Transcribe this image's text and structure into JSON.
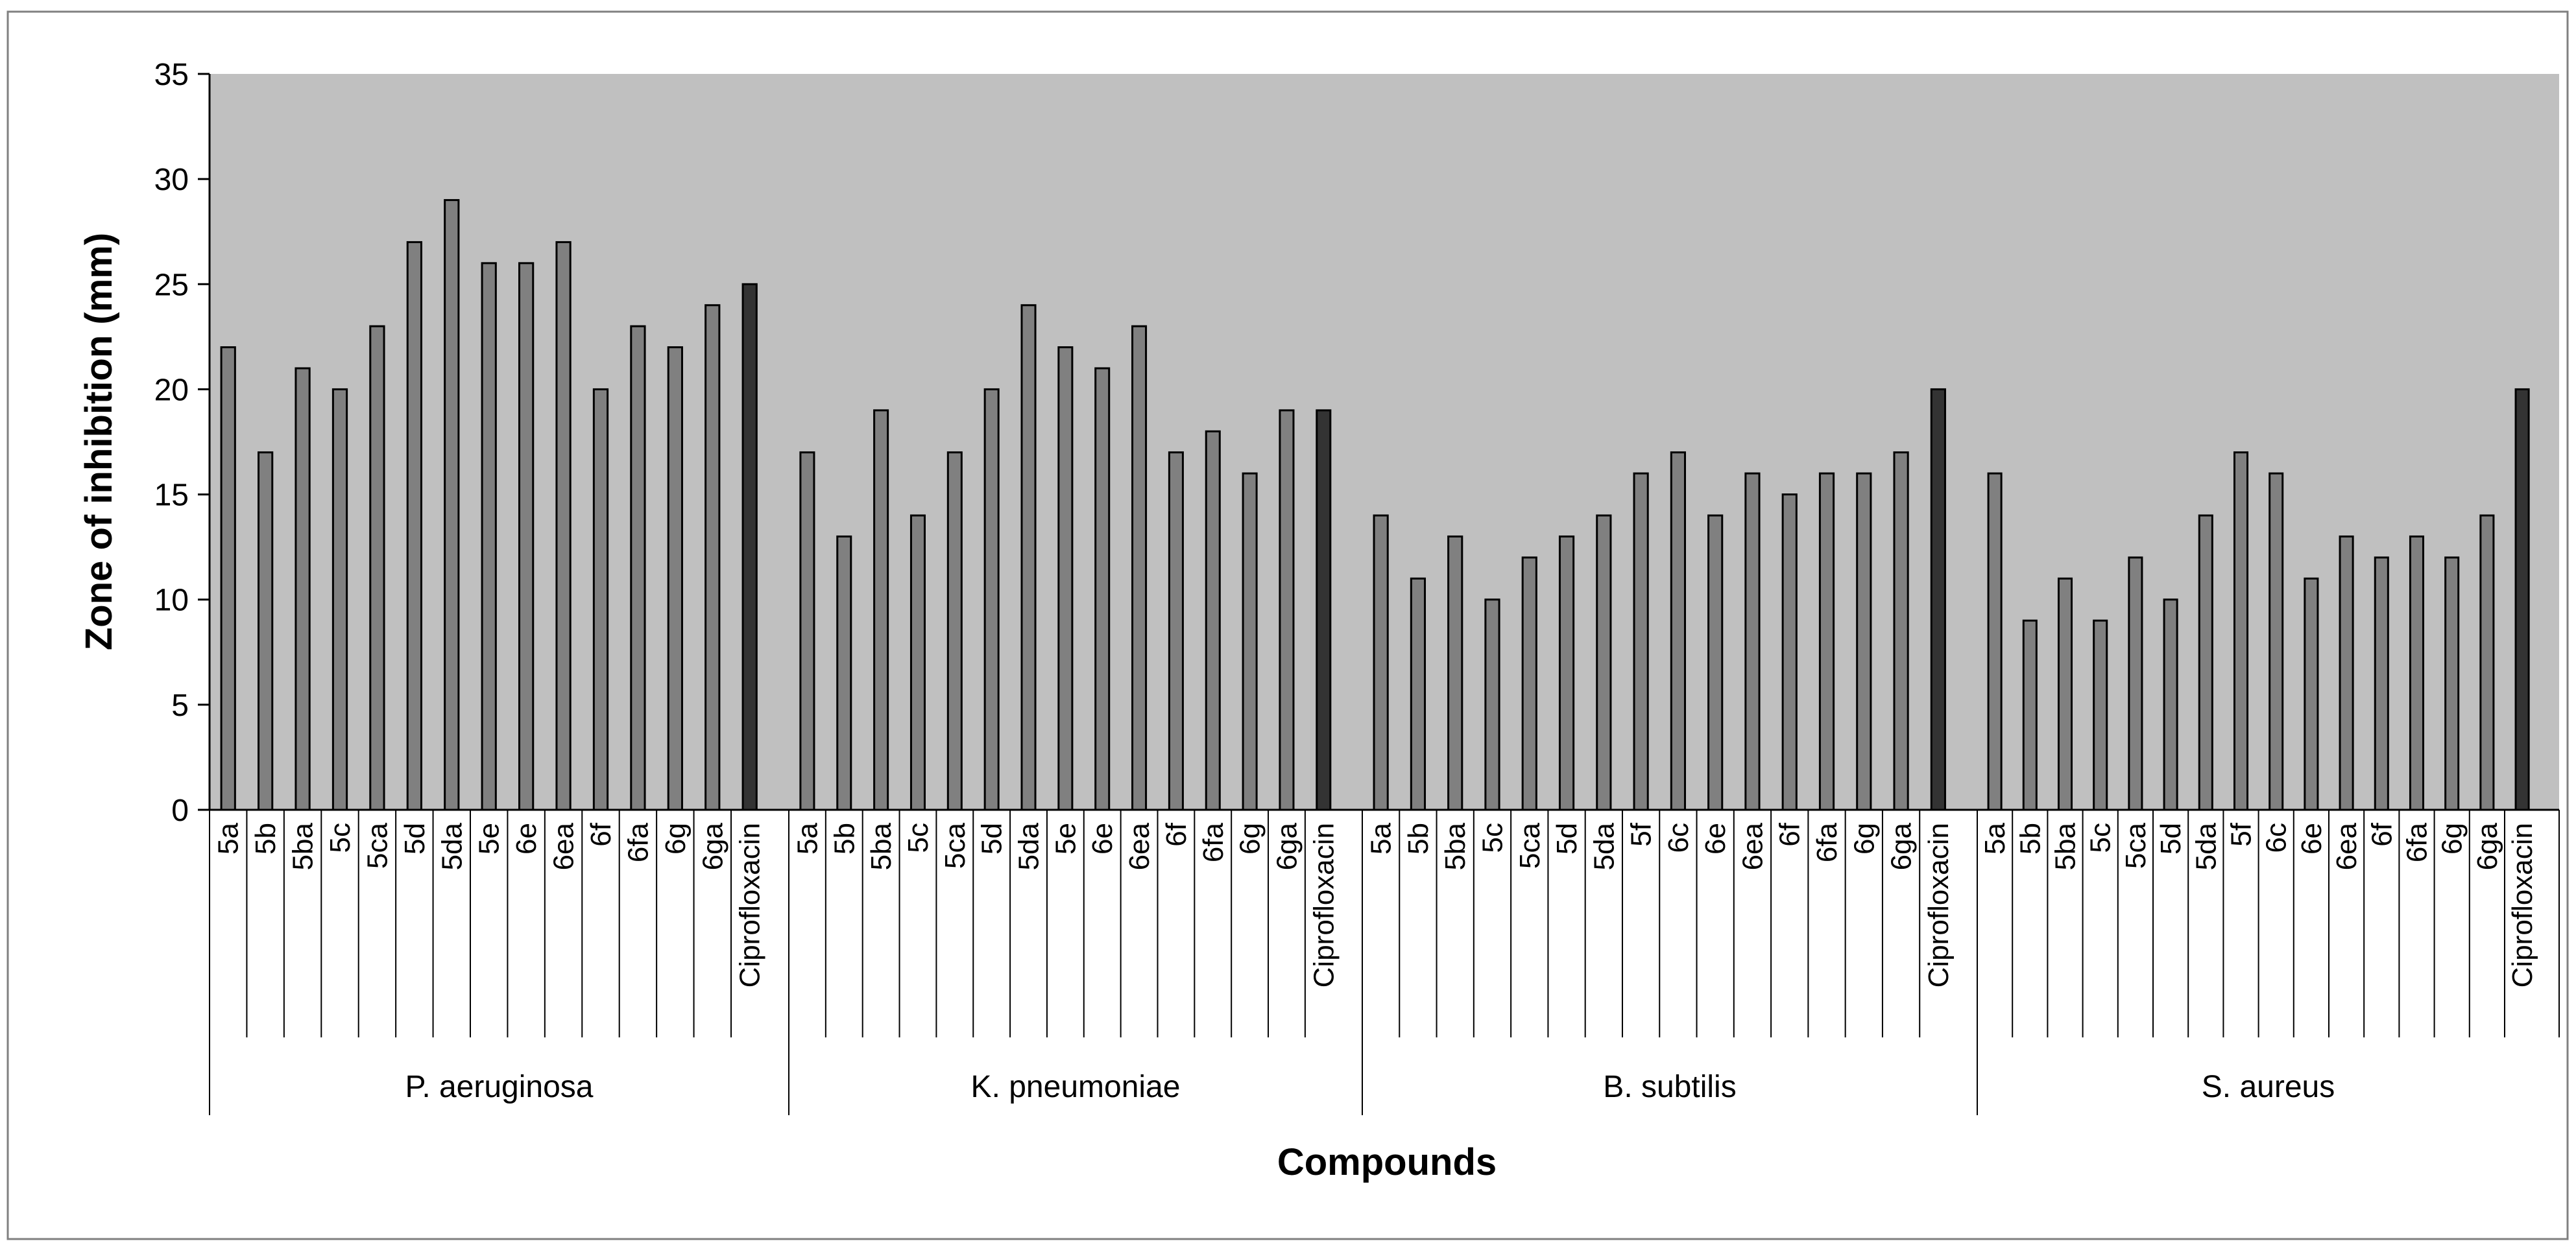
{
  "chart_data": {
    "type": "bar",
    "xlabel": "Compounds",
    "ylabel": "Zone of inhibition (mm)",
    "ylim": [
      0,
      35
    ],
    "yticks": [
      0,
      5,
      10,
      15,
      20,
      25,
      30,
      35
    ],
    "grid": false,
    "legend": "none",
    "plot_background": "#c0c0c0",
    "bar_color": "#808080",
    "control_bar_color": "#333333",
    "groups": [
      {
        "name": "P. aeruginosa",
        "categories": [
          "5a",
          "5b",
          "5ba",
          "5c",
          "5ca",
          "5d",
          "5da",
          "5e",
          "6e",
          "6ea",
          "6f",
          "6fa",
          "6g",
          "6ga",
          "Ciprofloxacin"
        ],
        "values": [
          22,
          17,
          21,
          20,
          23,
          27,
          29,
          26,
          26,
          27,
          20,
          23,
          22,
          24,
          25
        ]
      },
      {
        "name": "K. pneumoniae",
        "categories": [
          "5a",
          "5b",
          "5ba",
          "5c",
          "5ca",
          "5d",
          "5da",
          "5e",
          "6e",
          "6ea",
          "6f",
          "6fa",
          "6g",
          "6ga",
          "Ciprofloxacin"
        ],
        "values": [
          17,
          13,
          19,
          14,
          17,
          20,
          24,
          22,
          21,
          23,
          17,
          18,
          16,
          19,
          19
        ]
      },
      {
        "name": "B. subtilis",
        "categories": [
          "5a",
          "5b",
          "5ba",
          "5c",
          "5ca",
          "5d",
          "5da",
          "5f",
          "6c",
          "6e",
          "6ea",
          "6f",
          "6fa",
          "6g",
          "6ga",
          "Ciprofloxacin"
        ],
        "values": [
          14,
          11,
          13,
          10,
          12,
          13,
          14,
          16,
          17,
          14,
          16,
          15,
          16,
          16,
          17,
          20
        ]
      },
      {
        "name": "S. aureus",
        "categories": [
          "5a",
          "5b",
          "5ba",
          "5c",
          "5ca",
          "5d",
          "5da",
          "5f",
          "6c",
          "6e",
          "6ea",
          "6f",
          "6fa",
          "6g",
          "6ga",
          "Ciprofloxacin"
        ],
        "values": [
          16,
          9,
          11,
          9,
          12,
          10,
          14,
          17,
          16,
          11,
          13,
          12,
          13,
          12,
          14,
          20
        ]
      }
    ]
  }
}
